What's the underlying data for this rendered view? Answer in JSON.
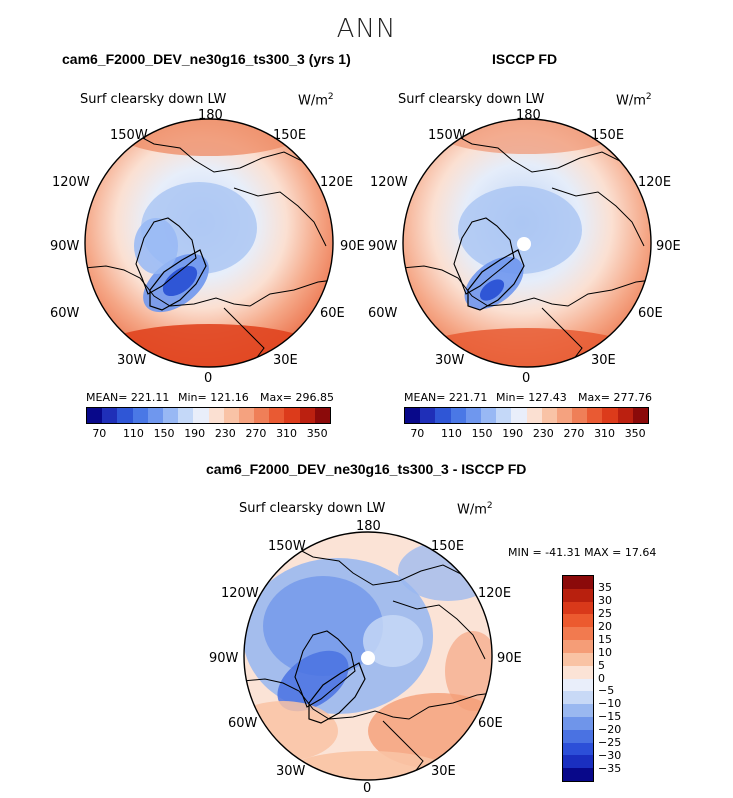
{
  "season": "ANN",
  "panels": [
    {
      "title": "cam6_F2000_DEV_ne30g16_ts300_3 (yrs 1)",
      "variable": "Surf clearsky down LW",
      "units_base": "W/m",
      "units_exp": "2",
      "stats": {
        "mean": "MEAN= 221.11",
        "min": "Min= 121.16",
        "max": "Max= 296.85"
      },
      "lon_labels": [
        "180",
        "150E",
        "120E",
        "90E",
        "60E",
        "30E",
        "0",
        "30W",
        "60W",
        "90W",
        "120W",
        "150W"
      ]
    },
    {
      "title": "ISCCP FD",
      "variable": "Surf clearsky down LW",
      "units_base": "W/m",
      "units_exp": "2",
      "stats": {
        "mean": "MEAN= 221.71",
        "min": "Min= 127.43",
        "max": "Max= 277.76"
      },
      "lon_labels": [
        "180",
        "150E",
        "120E",
        "90E",
        "60E",
        "30E",
        "0",
        "30W",
        "60W",
        "90W",
        "120W",
        "150W"
      ]
    },
    {
      "title": "cam6_F2000_DEV_ne30g16_ts300_3 - ISCCP FD",
      "variable": "Surf clearsky down LW",
      "units_base": "W/m",
      "units_exp": "2",
      "stats": {
        "minmax": "MIN = -41.31 MAX =  17.64"
      },
      "lon_labels": [
        "180",
        "150E",
        "120E",
        "90E",
        "60E",
        "30E",
        "0",
        "30W",
        "60W",
        "90W",
        "120W",
        "150W"
      ]
    }
  ],
  "colorbar_abs": {
    "colors": [
      "#08088a",
      "#1f2fb8",
      "#2f56d6",
      "#4a78e6",
      "#6f97ee",
      "#98b8f4",
      "#c4d8f8",
      "#e9eefa",
      "#fbe0d2",
      "#f9c3a6",
      "#f5a27f",
      "#ef7f58",
      "#e95a33",
      "#dc3b1b",
      "#bb2010",
      "#8b0a0a"
    ],
    "ticks": [
      "70",
      "110",
      "150",
      "190",
      "230",
      "270",
      "310",
      "350"
    ]
  },
  "colorbar_diff": {
    "colors": [
      "#8b0a0a",
      "#b8200e",
      "#d9391a",
      "#ec5a2f",
      "#f27a4f",
      "#f59d77",
      "#f9c3a4",
      "#fbe3d6",
      "#e9eefa",
      "#c8d9f6",
      "#9ab8f0",
      "#6f95ea",
      "#4a72e2",
      "#2c4fd8",
      "#1a2fc0",
      "#08088a"
    ],
    "ticks": [
      "35",
      "30",
      "25",
      "20",
      "15",
      "10",
      "5",
      "0",
      "−5",
      "−10",
      "−15",
      "−20",
      "−25",
      "−30",
      "−35"
    ]
  }
}
